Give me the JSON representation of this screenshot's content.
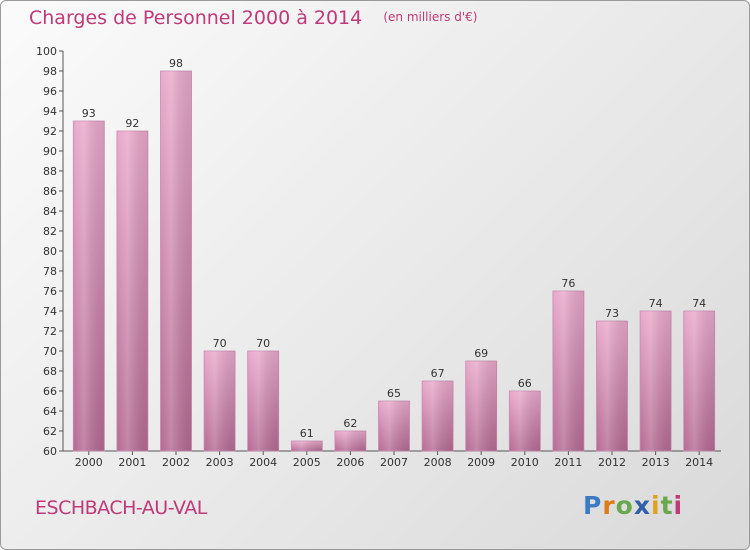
{
  "chart_data": {
    "type": "bar",
    "title": "Charges de Personnel 2000 à 2014",
    "subtitle": "(en milliers d'€)",
    "categories": [
      "2000",
      "2001",
      "2002",
      "2003",
      "2004",
      "2005",
      "2006",
      "2007",
      "2008",
      "2009",
      "2010",
      "2011",
      "2012",
      "2013",
      "2014"
    ],
    "values": [
      93,
      92,
      98,
      70,
      70,
      61,
      62,
      65,
      67,
      69,
      66,
      76,
      73,
      74,
      74
    ],
    "ylim": [
      60,
      100
    ],
    "yticks": [
      60,
      62,
      64,
      66,
      68,
      70,
      72,
      74,
      76,
      78,
      80,
      82,
      84,
      86,
      88,
      90,
      92,
      94,
      96,
      98,
      100
    ],
    "grid": false,
    "bar_color": "#d98fb8"
  },
  "commune": "ESCHBACH-AU-VAL",
  "logo": {
    "p": "P",
    "r": "r",
    "o": "o",
    "x": "x",
    "i1": "i",
    "t": "t",
    "i2": "i"
  }
}
